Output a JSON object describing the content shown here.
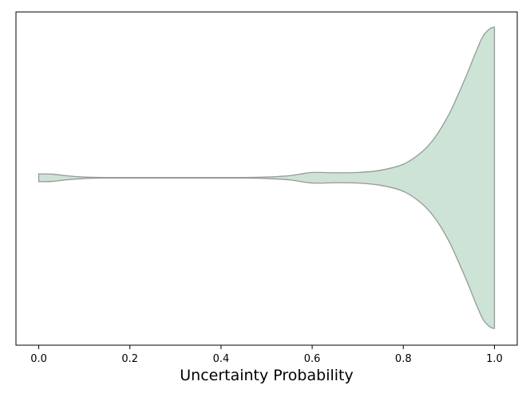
{
  "chart_data": {
    "type": "violin",
    "xlabel": "Uncertainty Probability",
    "ylabel": "",
    "title": "",
    "xlim": [
      -0.05,
      1.05
    ],
    "xticks": [
      "0.0",
      "0.2",
      "0.4",
      "0.6",
      "0.8",
      "1.0"
    ],
    "xtick_values": [
      0.0,
      0.2,
      0.4,
      0.6,
      0.8,
      1.0
    ],
    "orientation": "horizontal",
    "data_range": [
      0.0,
      1.0
    ],
    "fill_color": "#cce3d6",
    "edge_color": "#999999",
    "density_profile": {
      "x": [
        0.0,
        0.03,
        0.06,
        0.1,
        0.14,
        0.2,
        0.3,
        0.4,
        0.45,
        0.5,
        0.55,
        0.6,
        0.65,
        0.7,
        0.75,
        0.8,
        0.84,
        0.87,
        0.9,
        0.92,
        0.94,
        0.96,
        0.975,
        0.99,
        1.0
      ],
      "half_width": [
        0.026,
        0.024,
        0.014,
        0.005,
        0.002,
        0.002,
        0.002,
        0.002,
        0.002,
        0.005,
        0.014,
        0.035,
        0.033,
        0.035,
        0.05,
        0.09,
        0.17,
        0.27,
        0.42,
        0.55,
        0.69,
        0.84,
        0.94,
        0.99,
        1.0
      ]
    }
  }
}
